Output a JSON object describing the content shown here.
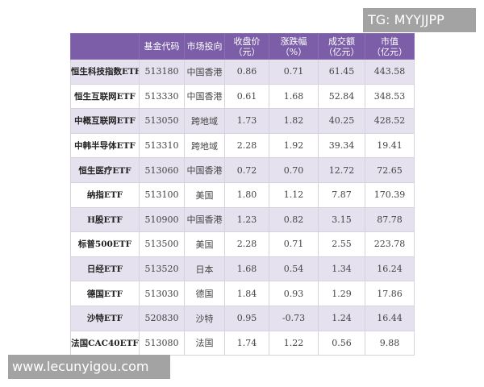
{
  "watermarks": {
    "top": "TG: MYYJJPP",
    "bottom": "www.lecunyigou.com"
  },
  "colors": {
    "header": "#7b5ea7",
    "stripe": "#e6e1ee"
  },
  "table": {
    "headers": [
      {
        "l1": "",
        "l2": ""
      },
      {
        "l1": "基金代码",
        "l2": ""
      },
      {
        "l1": "市场投向",
        "l2": ""
      },
      {
        "l1": "收盘价",
        "l2": "（元）"
      },
      {
        "l1": "涨跌幅",
        "l2": "（%）"
      },
      {
        "l1": "成交额",
        "l2": "（亿元）"
      },
      {
        "l1": "市值",
        "l2": "（亿元）"
      }
    ],
    "rows": [
      [
        "恒生科技指数ETF",
        "513180",
        "中国香港",
        "0.86",
        "0.71",
        "61.45",
        "443.58"
      ],
      [
        "恒生互联网ETF",
        "513330",
        "中国香港",
        "0.61",
        "1.68",
        "52.84",
        "348.53"
      ],
      [
        "中概互联网ETF",
        "513050",
        "跨地域",
        "1.73",
        "1.82",
        "40.25",
        "428.52"
      ],
      [
        "中韩半导体ETF",
        "513310",
        "跨地域",
        "2.28",
        "1.92",
        "39.34",
        "19.41"
      ],
      [
        "恒生医疗ETF",
        "513060",
        "中国香港",
        "0.72",
        "0.70",
        "12.72",
        "72.65"
      ],
      [
        "纳指ETF",
        "513100",
        "美国",
        "1.80",
        "1.12",
        "7.87",
        "170.39"
      ],
      [
        "H股ETF",
        "510900",
        "中国香港",
        "1.23",
        "0.82",
        "3.15",
        "87.78"
      ],
      [
        "标普500ETF",
        "513500",
        "美国",
        "2.28",
        "0.71",
        "2.55",
        "223.78"
      ],
      [
        "日经ETF",
        "513520",
        "日本",
        "1.68",
        "0.54",
        "1.34",
        "16.24"
      ],
      [
        "德国ETF",
        "513030",
        "德国",
        "1.84",
        "0.93",
        "1.29",
        "17.86"
      ],
      [
        "沙特ETF",
        "520830",
        "沙特",
        "0.95",
        "-0.73",
        "1.24",
        "16.44"
      ],
      [
        "法国CAC40ETF",
        "513080",
        "法国",
        "1.74",
        "1.22",
        "0.56",
        "9.88"
      ]
    ]
  }
}
